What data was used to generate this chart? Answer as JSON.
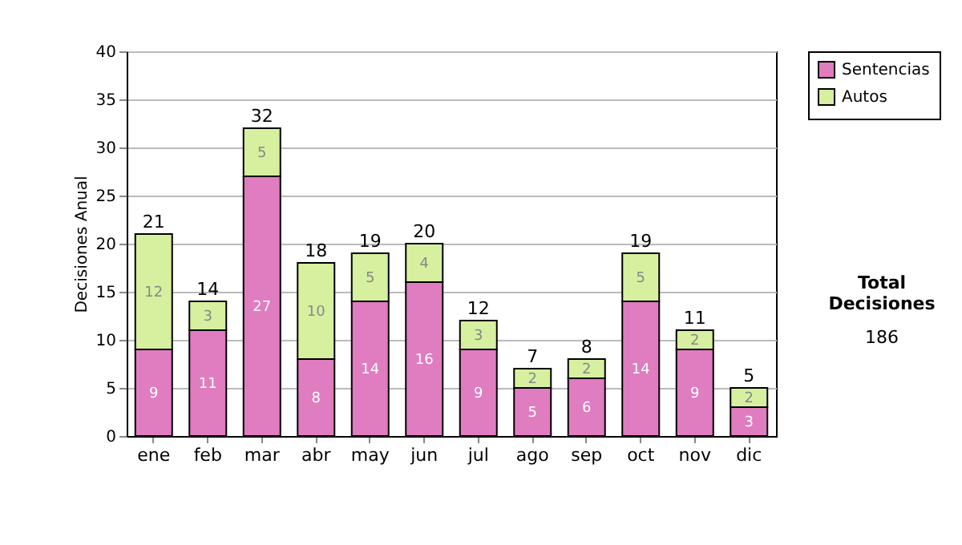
{
  "chart_data": {
    "type": "bar",
    "stacked": true,
    "ylabel": "Decisiones Anual",
    "categories": [
      "ene",
      "feb",
      "mar",
      "abr",
      "may",
      "jun",
      "jul",
      "ago",
      "sep",
      "oct",
      "nov",
      "dic"
    ],
    "series": [
      {
        "name": "Sentencias",
        "color": "#e07cc0",
        "values": [
          9,
          11,
          27,
          8,
          14,
          16,
          9,
          5,
          6,
          14,
          9,
          3
        ]
      },
      {
        "name": "Autos",
        "color": "#d6f0a0",
        "values": [
          12,
          3,
          5,
          10,
          5,
          4,
          3,
          2,
          2,
          5,
          2,
          2
        ]
      }
    ],
    "totals": [
      "21",
      "14",
      "32",
      "18",
      "19",
      "20",
      "12",
      "7",
      "8",
      "19",
      "11",
      "5"
    ],
    "data_labels": true,
    "ylim": [
      0,
      40
    ],
    "yticks": [
      0,
      5,
      10,
      15,
      20,
      25,
      30,
      35,
      40
    ],
    "grid": "y",
    "legend": "right",
    "annotations": [
      "Total Decisiones",
      "186"
    ]
  }
}
